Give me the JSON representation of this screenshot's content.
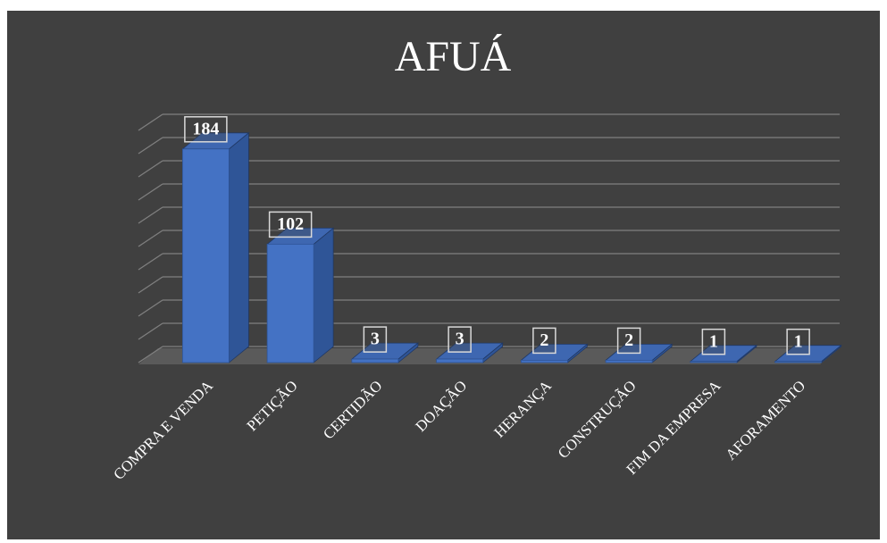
{
  "chart_data": {
    "type": "bar3d",
    "title": "AFUÁ",
    "categories": [
      "COMPRA E VENDA",
      "PETIÇÃO",
      "CERTIDÃO",
      "DOAÇÃO",
      "HERANÇA",
      "CONSTRUÇÃO",
      "FIM DA EMPRESA",
      "AFORAMENTO"
    ],
    "values": [
      184,
      102,
      3,
      3,
      2,
      2,
      1,
      1
    ],
    "color": "#4472c4",
    "ylim": [
      0,
      200
    ],
    "yticks": [
      0,
      20,
      40,
      60,
      80,
      100,
      120,
      140,
      160,
      180,
      200
    ],
    "grid": true
  }
}
